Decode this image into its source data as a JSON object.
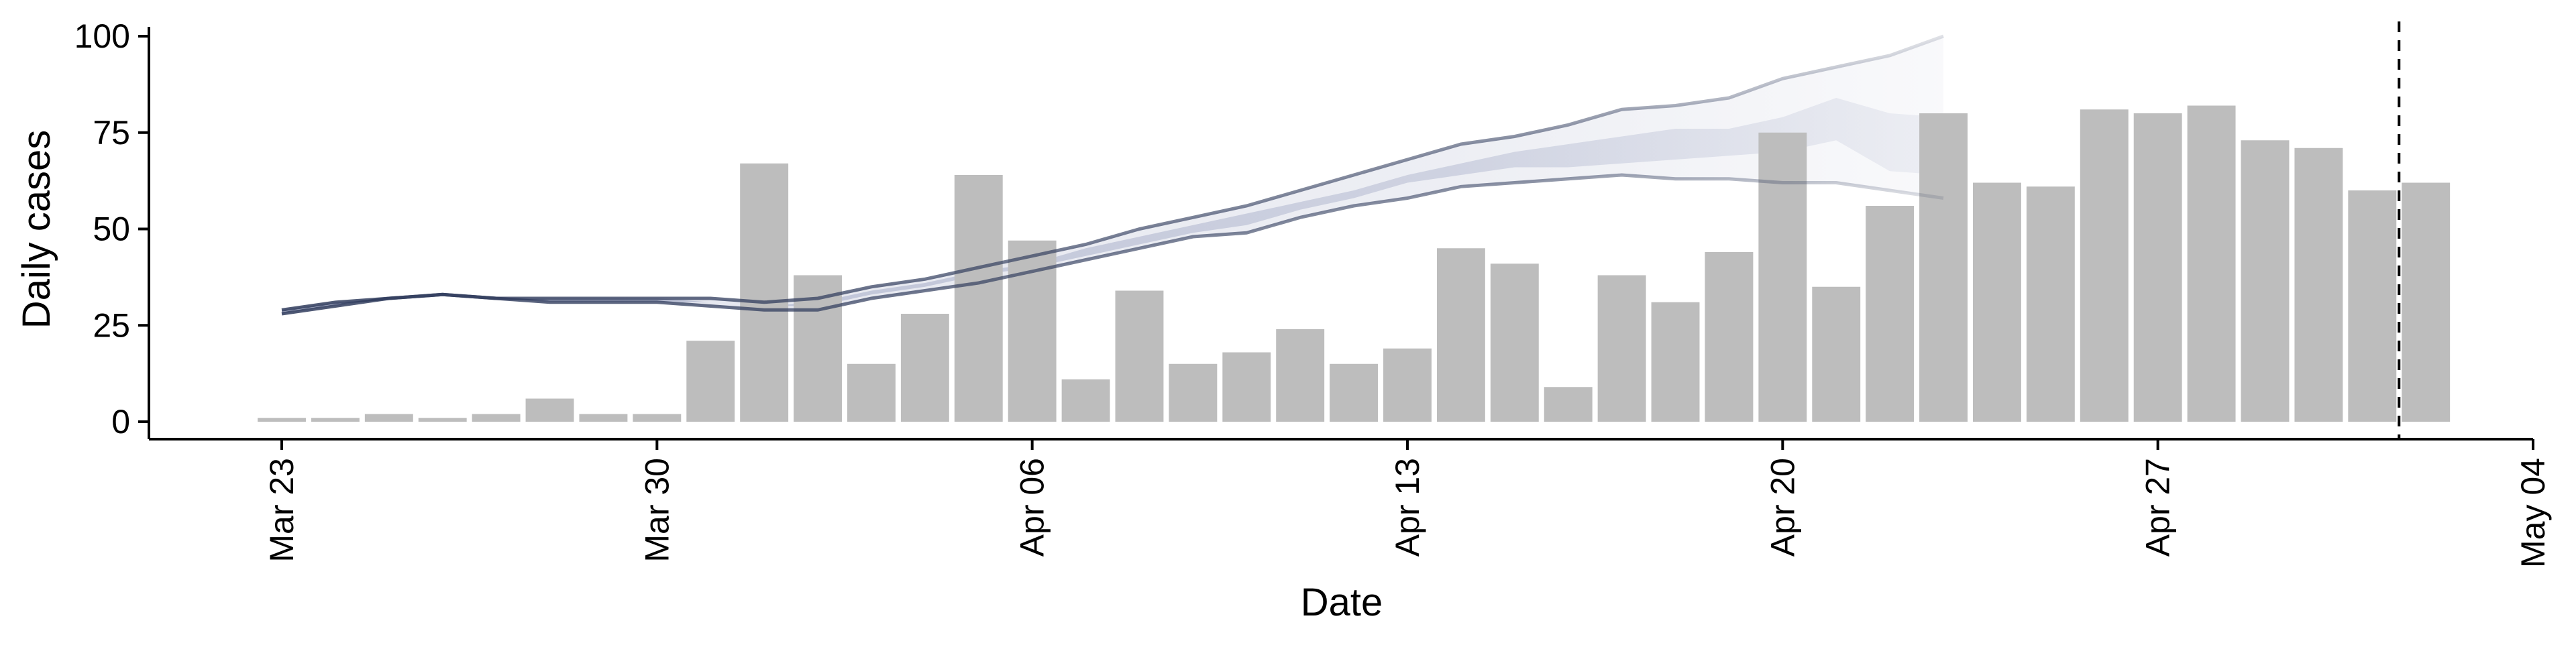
{
  "chart_data": {
    "type": "bar",
    "title": "",
    "xlabel": "Date",
    "ylabel": "Daily cases",
    "ylim": [
      0,
      100
    ],
    "xlim": [
      "2020-03-20",
      "2020-05-04"
    ],
    "y_ticks": [
      {
        "value": 0,
        "label": "0"
      },
      {
        "value": 25,
        "label": "25"
      },
      {
        "value": 50,
        "label": "50"
      },
      {
        "value": 75,
        "label": "75"
      },
      {
        "value": 100,
        "label": "100"
      }
    ],
    "x_ticks": [
      {
        "date": "2020-03-23",
        "label": "Mar 23"
      },
      {
        "date": "2020-03-30",
        "label": "Mar 30"
      },
      {
        "date": "2020-04-06",
        "label": "Apr 06"
      },
      {
        "date": "2020-04-13",
        "label": "Apr 13"
      },
      {
        "date": "2020-04-20",
        "label": "Apr 20"
      },
      {
        "date": "2020-04-27",
        "label": "Apr 27"
      },
      {
        "date": "2020-05-04",
        "label": "May 04"
      }
    ],
    "bars": {
      "dates": [
        "2020-03-23",
        "2020-03-24",
        "2020-03-25",
        "2020-03-26",
        "2020-03-27",
        "2020-03-28",
        "2020-03-29",
        "2020-03-30",
        "2020-03-31",
        "2020-04-01",
        "2020-04-02",
        "2020-04-03",
        "2020-04-04",
        "2020-04-05",
        "2020-04-06",
        "2020-04-07",
        "2020-04-08",
        "2020-04-09",
        "2020-04-10",
        "2020-04-11",
        "2020-04-12",
        "2020-04-13",
        "2020-04-14",
        "2020-04-15",
        "2020-04-16",
        "2020-04-17",
        "2020-04-18",
        "2020-04-19",
        "2020-04-20",
        "2020-04-21",
        "2020-04-22",
        "2020-04-23",
        "2020-04-24",
        "2020-04-25",
        "2020-04-26",
        "2020-04-27",
        "2020-04-28",
        "2020-04-29",
        "2020-04-30",
        "2020-05-01",
        "2020-05-02"
      ],
      "values": [
        1,
        1,
        2,
        1,
        2,
        6,
        2,
        2,
        21,
        67,
        38,
        15,
        28,
        64,
        47,
        11,
        34,
        15,
        18,
        24,
        15,
        19,
        45,
        41,
        9,
        38,
        31,
        44,
        75,
        35,
        56,
        80,
        62,
        61,
        81,
        80,
        82,
        73,
        71,
        60,
        62
      ],
      "color": "#bdbdbd"
    },
    "estimate": {
      "dates": [
        "2020-03-23",
        "2020-03-24",
        "2020-03-25",
        "2020-03-26",
        "2020-03-27",
        "2020-03-28",
        "2020-03-29",
        "2020-03-30",
        "2020-03-31",
        "2020-04-01",
        "2020-04-02",
        "2020-04-03",
        "2020-04-04",
        "2020-04-05",
        "2020-04-06",
        "2020-04-07",
        "2020-04-08",
        "2020-04-09",
        "2020-04-10",
        "2020-04-11",
        "2020-04-12",
        "2020-04-13",
        "2020-04-14",
        "2020-04-15",
        "2020-04-16",
        "2020-04-17",
        "2020-04-18",
        "2020-04-19",
        "2020-04-20",
        "2020-04-21",
        "2020-04-22",
        "2020-04-23"
      ],
      "upper": [
        29,
        31,
        32,
        33,
        32,
        32,
        32,
        32,
        32,
        31,
        32,
        35,
        37,
        40,
        43,
        46,
        50,
        53,
        56,
        60,
        64,
        68,
        72,
        74,
        77,
        81,
        82,
        84,
        89,
        92,
        95,
        100
      ],
      "lower": [
        28,
        30,
        32,
        33,
        32,
        31,
        31,
        31,
        30,
        29,
        29,
        32,
        34,
        36,
        39,
        42,
        45,
        48,
        49,
        53,
        56,
        58,
        61,
        62,
        63,
        64,
        63,
        63,
        62,
        62,
        60,
        58
      ],
      "inner_upper": [
        29,
        31,
        32,
        33,
        32,
        32,
        32,
        32,
        31,
        30,
        31,
        34,
        36,
        39,
        41,
        45,
        48,
        51,
        54,
        57,
        60,
        64,
        67,
        70,
        72,
        74,
        76,
        76,
        79,
        84,
        80,
        79
      ],
      "inner_lower": [
        28,
        30,
        32,
        33,
        32,
        31,
        31,
        31,
        31,
        30,
        30,
        33,
        35,
        38,
        40,
        43,
        46,
        49,
        51,
        55,
        58,
        62,
        64,
        66,
        66,
        67,
        68,
        69,
        70,
        73,
        65,
        64
      ],
      "color": "#2f3b5c"
    },
    "vline": {
      "date": "2020-05-02",
      "style": "dashed",
      "color": "#000000"
    },
    "grid": false,
    "legend": "none"
  }
}
